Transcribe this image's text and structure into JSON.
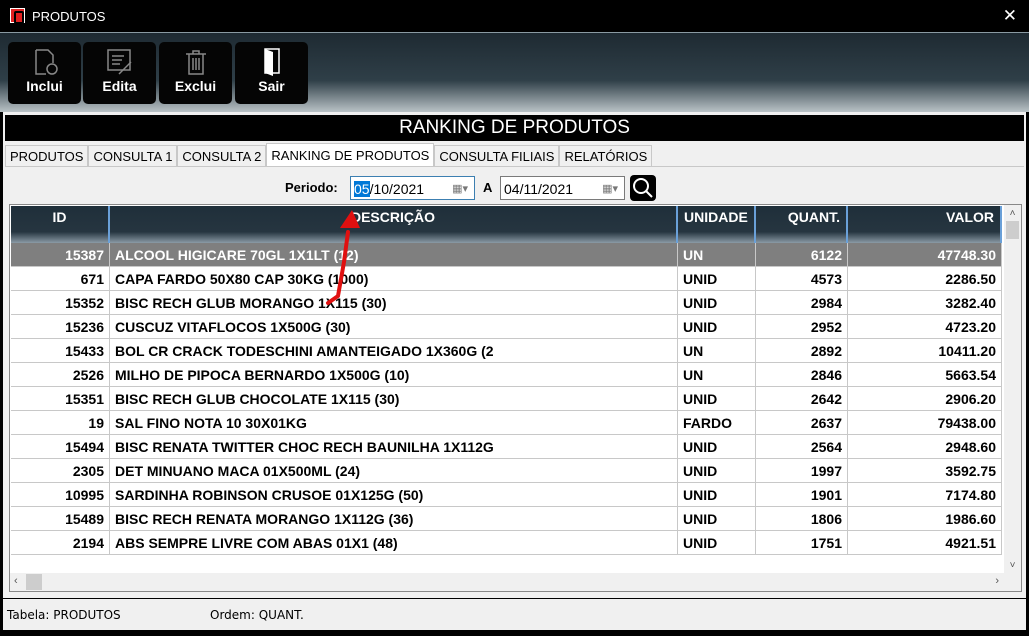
{
  "window": {
    "title": "PRODUTOS",
    "close": "✕"
  },
  "toolbar": [
    {
      "label": "Inclui",
      "icon": "new-document-icon"
    },
    {
      "label": "Edita",
      "icon": "edit-icon"
    },
    {
      "label": "Exclui",
      "icon": "trash-icon"
    },
    {
      "label": "Sair",
      "icon": "door-exit-icon"
    }
  ],
  "banner": "RANKING DE PRODUTOS",
  "tabs": [
    {
      "label": "PRODUTOS"
    },
    {
      "label": "CONSULTA 1"
    },
    {
      "label": "CONSULTA 2"
    },
    {
      "label": "RANKING DE PRODUTOS",
      "active": true
    },
    {
      "label": "CONSULTA FILIAIS"
    },
    {
      "label": "RELATÓRIOS"
    }
  ],
  "filter": {
    "period_label": "Periodo:",
    "start_sel": "05",
    "start_rest": "/10/2021",
    "separator": "A",
    "end": "04/11/2021"
  },
  "grid": {
    "columns": [
      "ID",
      "DESCRIÇÃO",
      "UNIDADE",
      "QUANT.",
      "VALOR"
    ],
    "rows": [
      [
        "15387",
        "ALCOOL HIGICARE 70GL 1X1LT (12)",
        "UN",
        "6122",
        "47748.30"
      ],
      [
        "671",
        "CAPA FARDO 50X80 CAP 30KG  (1000)",
        "UNID",
        "4573",
        "2286.50"
      ],
      [
        "15352",
        "BISC RECH GLUB MORANGO 1X115 (30)",
        "UNID",
        "2984",
        "3282.40"
      ],
      [
        "15236",
        "CUSCUZ VITAFLOCOS 1X500G  (30)",
        "UNID",
        "2952",
        "4723.20"
      ],
      [
        "15433",
        "BOL CR CRACK TODESCHINI AMANTEIGADO 1X360G (2",
        "UN",
        "2892",
        "10411.20"
      ],
      [
        "2526",
        "MILHO DE PIPOCA BERNARDO 1X500G (10)",
        "UN",
        "2846",
        "5663.54"
      ],
      [
        "15351",
        "BISC RECH GLUB CHOCOLATE 1X115 (30)",
        "UNID",
        "2642",
        "2906.20"
      ],
      [
        "19",
        "SAL FINO NOTA 10 30X01KG",
        "FARDO",
        "2637",
        "79438.00"
      ],
      [
        "15494",
        "BISC RENATA TWITTER CHOC RECH BAUNILHA 1X112G",
        "UNID",
        "2564",
        "2948.60"
      ],
      [
        "2305",
        "DET MINUANO MACA 01X500ML (24)",
        "UNID",
        "1997",
        "3592.75"
      ],
      [
        "10995",
        "SARDINHA ROBINSON CRUSOE 01X125G (50)",
        "UNID",
        "1901",
        "7174.80"
      ],
      [
        "15489",
        "BISC RECH RENATA MORANGO 1X112G (36)",
        "UNID",
        "1806",
        "1986.60"
      ],
      [
        "2194",
        "ABS SEMPRE LIVRE COM ABAS 01X1 (48)",
        "UNID",
        "1751",
        "4921.51"
      ]
    ],
    "selected_row": 0
  },
  "status": {
    "table": "Tabela: PRODUTOS",
    "order": "Ordem: QUANT."
  },
  "colors": {
    "selected_row": "#7f7f7f",
    "header": "#263540",
    "annotation": "#e01010"
  }
}
